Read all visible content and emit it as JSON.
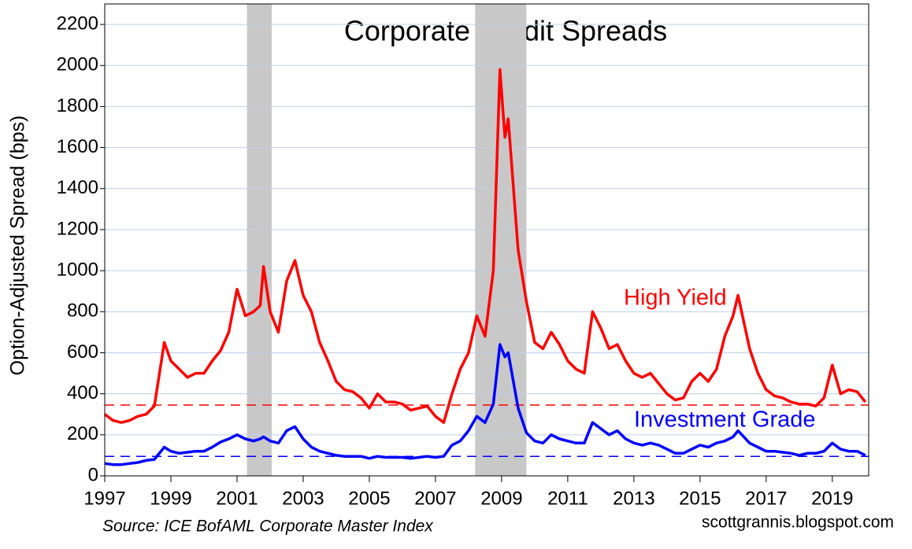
{
  "chart_data": {
    "type": "line",
    "title": "Corporate Credit Spreads",
    "y_label": "Option-Adjusted Spread (bps)",
    "source": "Source: ICE BofAML Corporate Master Index",
    "credit": "scottgrannis.blogspot.com",
    "xlim": [
      1997,
      2020.1
    ],
    "xticks": [
      1997,
      1999,
      2001,
      2003,
      2005,
      2007,
      2009,
      2011,
      2013,
      2015,
      2017,
      2019
    ],
    "ylim": [
      0,
      2300
    ],
    "yticks": [
      0,
      200,
      400,
      600,
      800,
      1000,
      1200,
      1400,
      1600,
      1800,
      2000,
      2200
    ],
    "grid": true,
    "shaded_periods": [
      [
        2001.3,
        2002.05
      ],
      [
        2008.2,
        2009.75
      ]
    ],
    "x": [
      1997,
      1997.25,
      1997.5,
      1997.75,
      1998,
      1998.25,
      1998.5,
      1998.8,
      1999,
      1999.25,
      1999.5,
      1999.75,
      2000,
      2000.25,
      2000.5,
      2000.75,
      2001,
      2001.25,
      2001.5,
      2001.7,
      2001.8,
      2002,
      2002.25,
      2002.5,
      2002.75,
      2003,
      2003.25,
      2003.5,
      2003.75,
      2004,
      2004.25,
      2004.5,
      2004.75,
      2005,
      2005.25,
      2005.5,
      2005.75,
      2006,
      2006.25,
      2006.5,
      2006.75,
      2007,
      2007.25,
      2007.5,
      2007.75,
      2008,
      2008.25,
      2008.5,
      2008.75,
      2008.95,
      2009.1,
      2009.2,
      2009.5,
      2009.75,
      2010,
      2010.25,
      2010.5,
      2010.75,
      2011,
      2011.25,
      2011.5,
      2011.75,
      2012,
      2012.25,
      2012.5,
      2012.75,
      2013,
      2013.25,
      2013.5,
      2013.75,
      2014,
      2014.25,
      2014.5,
      2014.75,
      2015,
      2015.25,
      2015.5,
      2015.75,
      2016,
      2016.15,
      2016.5,
      2016.75,
      2017,
      2017.25,
      2017.5,
      2017.75,
      2018,
      2018.25,
      2018.5,
      2018.75,
      2019,
      2019.25,
      2019.5,
      2019.75,
      2020
    ],
    "series": [
      {
        "name": "High Yield",
        "color": "#ff0000",
        "reference_line": 345,
        "values": [
          300,
          270,
          260,
          270,
          290,
          300,
          340,
          650,
          560,
          520,
          480,
          500,
          500,
          560,
          610,
          700,
          910,
          780,
          800,
          830,
          1020,
          800,
          700,
          950,
          1050,
          880,
          800,
          650,
          560,
          460,
          420,
          410,
          380,
          330,
          400,
          360,
          360,
          350,
          320,
          330,
          340,
          290,
          260,
          400,
          520,
          600,
          780,
          680,
          1000,
          1980,
          1650,
          1740,
          1100,
          850,
          650,
          620,
          700,
          640,
          560,
          520,
          500,
          800,
          720,
          620,
          640,
          560,
          500,
          480,
          500,
          450,
          400,
          370,
          380,
          460,
          500,
          460,
          520,
          680,
          780,
          880,
          620,
          500,
          420,
          390,
          380,
          360,
          350,
          350,
          340,
          380,
          540,
          400,
          420,
          410,
          360
        ]
      },
      {
        "name": "Investment Grade",
        "color": "#0000ff",
        "reference_line": 95,
        "values": [
          60,
          55,
          55,
          60,
          65,
          75,
          80,
          140,
          120,
          110,
          115,
          120,
          120,
          140,
          165,
          180,
          200,
          180,
          170,
          180,
          190,
          170,
          160,
          220,
          240,
          180,
          140,
          120,
          110,
          100,
          95,
          95,
          95,
          85,
          95,
          90,
          90,
          90,
          85,
          90,
          95,
          90,
          95,
          150,
          170,
          220,
          290,
          260,
          350,
          640,
          580,
          600,
          330,
          210,
          170,
          160,
          200,
          180,
          170,
          160,
          160,
          260,
          230,
          200,
          220,
          180,
          160,
          150,
          160,
          150,
          130,
          110,
          110,
          130,
          150,
          140,
          160,
          170,
          190,
          220,
          160,
          140,
          120,
          120,
          115,
          110,
          100,
          110,
          110,
          120,
          160,
          130,
          120,
          120,
          100
        ]
      }
    ]
  }
}
